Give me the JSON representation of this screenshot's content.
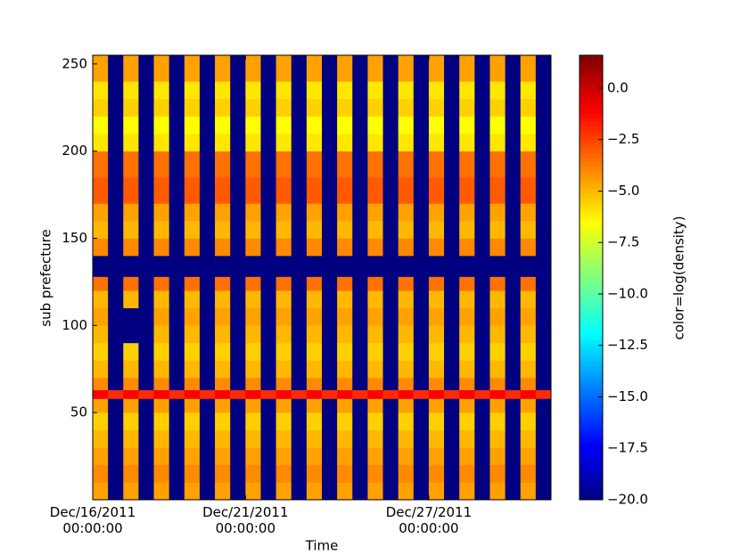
{
  "chart_data": {
    "type": "heatmap",
    "xlabel": "Time",
    "ylabel": "sub prefecture",
    "colorbar_label": "color=log(density)",
    "colormap": "jet",
    "xlim": [
      0,
      15
    ],
    "ylim": [
      0,
      255
    ],
    "clim": [
      -20,
      1.6
    ],
    "xticks": [
      {
        "value": 0,
        "label": "Dec/16/2011\n00:00:00"
      },
      {
        "value": 5,
        "label": "Dec/21/2011\n00:00:00"
      },
      {
        "value": 11,
        "label": "Dec/27/2011\n00:00:00"
      }
    ],
    "yticks": [
      50,
      100,
      150,
      200,
      250
    ],
    "cticks": [
      {
        "value": 0,
        "label": "0.0"
      },
      {
        "value": -2.5,
        "label": "−2.5"
      },
      {
        "value": -5,
        "label": "−5.0"
      },
      {
        "value": -7.5,
        "label": "−7.5"
      },
      {
        "value": -10,
        "label": "−10.0"
      },
      {
        "value": -12.5,
        "label": "−12.5"
      },
      {
        "value": -15,
        "label": "−15.0"
      },
      {
        "value": -17.5,
        "label": "−17.5"
      },
      {
        "value": -20,
        "label": "−20.0"
      }
    ],
    "x_bins": [
      0,
      0.5,
      1,
      1.5,
      2,
      2.5,
      3,
      3.5,
      4,
      4.5,
      5,
      5.5,
      6,
      6.5,
      7,
      7.5,
      8,
      8.5,
      9,
      9.5,
      10,
      10.5,
      11,
      11.5,
      12,
      12.5,
      13,
      13.5,
      14,
      14.5,
      15
    ],
    "y_bins": [
      0,
      10,
      20,
      30,
      40,
      50,
      58,
      63,
      70,
      80,
      90,
      100,
      110,
      120,
      128,
      140,
      150,
      160,
      170,
      185,
      200,
      210,
      220,
      230,
      240,
      255
    ],
    "values": [
      [
        -4.5,
        -20,
        -4.5,
        -20,
        -4.5,
        -20,
        -4.5,
        -20,
        -4.5,
        -20,
        -4.5,
        -20,
        -4.5,
        -20,
        -4.5,
        -20,
        -4.5,
        -20,
        -4.5,
        -20,
        -4.5,
        -20,
        -4.5,
        -20,
        -4.5,
        -20,
        -4.5,
        -20,
        -4.5,
        -20
      ],
      [
        -4,
        -20,
        -4,
        -20,
        -4,
        -20,
        -4,
        -20,
        -4,
        -20,
        -4,
        -20,
        -4,
        -20,
        -4,
        -20,
        -4,
        -20,
        -4,
        -20,
        -4,
        -20,
        -4,
        -20,
        -4,
        -20,
        -4,
        -20,
        -4,
        -20
      ],
      [
        -4.5,
        -20,
        -4.5,
        -20,
        -4.5,
        -20,
        -4.5,
        -20,
        -4.5,
        -20,
        -4.5,
        -20,
        -4.5,
        -20,
        -4.5,
        -20,
        -4.5,
        -20,
        -4.5,
        -20,
        -4.5,
        -20,
        -4.5,
        -20,
        -4.5,
        -20,
        -4.5,
        -20,
        -4.5,
        -20
      ],
      [
        -5,
        -20,
        -5,
        -20,
        -5,
        -20,
        -5,
        -20,
        -5,
        -20,
        -5,
        -20,
        -5,
        -20,
        -5,
        -20,
        -5,
        -20,
        -5,
        -20,
        -5,
        -20,
        -5,
        -20,
        -5,
        -20,
        -5,
        -20,
        -5,
        -20
      ],
      [
        -5.5,
        -20,
        -5.5,
        -20,
        -5.5,
        -20,
        -5.5,
        -20,
        -5.5,
        -20,
        -5.5,
        -20,
        -5.5,
        -20,
        -5.5,
        -20,
        -5.5,
        -20,
        -5.5,
        -20,
        -5.5,
        -20,
        -5.5,
        -20,
        -5.5,
        -20,
        -5.5,
        -20,
        -5.5,
        -20
      ],
      [
        -4.5,
        -20,
        -4.5,
        -20,
        -4.5,
        -20,
        -4.5,
        -20,
        -4.5,
        -20,
        -4.5,
        -20,
        -4.5,
        -20,
        -4.5,
        -20,
        -4.5,
        -20,
        -4.5,
        -20,
        -4.5,
        -20,
        -4.5,
        -20,
        -4.5,
        -20,
        -4.5,
        -20,
        -4.5,
        -20
      ],
      [
        -1,
        -2,
        -1,
        -2,
        -1,
        -2,
        -1,
        -2,
        -1,
        -2,
        -1,
        -2,
        -1,
        -2,
        -1,
        -2,
        -1,
        -2,
        -1,
        -2,
        -1,
        -2,
        -1,
        -2,
        -1,
        -2,
        -1,
        -2,
        -1,
        -2
      ],
      [
        -4,
        -20,
        -4,
        -20,
        -4,
        -20,
        -4,
        -20,
        -4,
        -20,
        -4,
        -20,
        -4,
        -20,
        -4,
        -20,
        -4,
        -20,
        -4,
        -20,
        -4,
        -20,
        -4,
        -20,
        -4,
        -20,
        -4,
        -20,
        -4,
        -20
      ],
      [
        -5,
        -20,
        -5,
        -20,
        -5,
        -20,
        -5,
        -20,
        -5,
        -20,
        -5,
        -20,
        -5,
        -20,
        -5,
        -20,
        -5,
        -20,
        -5,
        -20,
        -5,
        -20,
        -5,
        -20,
        -5,
        -20,
        -5,
        -20,
        -5,
        -20
      ],
      [
        -5.5,
        -20,
        -5.5,
        -20,
        -5.5,
        -20,
        -5.5,
        -20,
        -5.5,
        -20,
        -5.5,
        -20,
        -5.5,
        -20,
        -5.5,
        -20,
        -5.5,
        -20,
        -5.5,
        -20,
        -5.5,
        -20,
        -5.5,
        -20,
        -5.5,
        -20,
        -5.5,
        -20,
        -5.5,
        -20
      ],
      [
        -5,
        -20,
        -20,
        -20,
        -5,
        -20,
        -5,
        -20,
        -5,
        -20,
        -5,
        -20,
        -5,
        -20,
        -5,
        -20,
        -5,
        -20,
        -5,
        -20,
        -5,
        -20,
        -5,
        -20,
        -5,
        -20,
        -5,
        -20,
        -5,
        -20
      ],
      [
        -4.5,
        -20,
        -20,
        -20,
        -4.5,
        -20,
        -4.5,
        -20,
        -4.5,
        -20,
        -4.5,
        -20,
        -4.5,
        -20,
        -4.5,
        -20,
        -4.5,
        -20,
        -4.5,
        -20,
        -4.5,
        -20,
        -4.5,
        -20,
        -4.5,
        -20,
        -4.5,
        -20,
        -4.5,
        -20
      ],
      [
        -5,
        -20,
        -5,
        -20,
        -5,
        -20,
        -5,
        -20,
        -5,
        -20,
        -5,
        -20,
        -5,
        -20,
        -5,
        -20,
        -5,
        -20,
        -5,
        -20,
        -5,
        -20,
        -5,
        -20,
        -5,
        -20,
        -5,
        -20,
        -5,
        -20
      ],
      [
        -3.5,
        -20,
        -3.5,
        -20,
        -3.5,
        -20,
        -3.5,
        -20,
        -3.5,
        -20,
        -3.5,
        -20,
        -3.5,
        -20,
        -3.5,
        -20,
        -3.5,
        -20,
        -3.5,
        -20,
        -3.5,
        -20,
        -3.5,
        -20,
        -3.5,
        -20,
        -3.5,
        -20,
        -3.5,
        -20
      ],
      [
        -20,
        -20,
        -20,
        -20,
        -20,
        -20,
        -20,
        -20,
        -20,
        -20,
        -20,
        -20,
        -20,
        -20,
        -20,
        -20,
        -20,
        -20,
        -20,
        -20,
        -20,
        -20,
        -20,
        -20,
        -20,
        -20,
        -20,
        -20,
        -20,
        -20
      ],
      [
        -4,
        -20,
        -4,
        -20,
        -4,
        -20,
        -4,
        -20,
        -4,
        -20,
        -4,
        -20,
        -4,
        -20,
        -4,
        -20,
        -4,
        -20,
        -4,
        -20,
        -4,
        -20,
        -4,
        -20,
        -4,
        -20,
        -4,
        -20,
        -4,
        -20
      ],
      [
        -5,
        -20,
        -5,
        -20,
        -5,
        -20,
        -5,
        -20,
        -5,
        -20,
        -5,
        -20,
        -5,
        -20,
        -5,
        -20,
        -5,
        -20,
        -5,
        -20,
        -5,
        -20,
        -5,
        -20,
        -5,
        -20,
        -5,
        -20,
        -5,
        -20
      ],
      [
        -4.5,
        -20,
        -4.5,
        -20,
        -4.5,
        -20,
        -4.5,
        -20,
        -4.5,
        -20,
        -4.5,
        -20,
        -4.5,
        -20,
        -4.5,
        -20,
        -4.5,
        -20,
        -4.5,
        -20,
        -4.5,
        -20,
        -4.5,
        -20,
        -4.5,
        -20,
        -4.5,
        -20,
        -4.5,
        -20
      ],
      [
        -3,
        -20,
        -3,
        -20,
        -3,
        -20,
        -3,
        -20,
        -3,
        -20,
        -3,
        -20,
        -3,
        -20,
        -3,
        -20,
        -3,
        -20,
        -3,
        -20,
        -3,
        -20,
        -3,
        -20,
        -3,
        -20,
        -3,
        -20,
        -3,
        -20
      ],
      [
        -3.5,
        -20,
        -3.5,
        -20,
        -3.5,
        -20,
        -3.5,
        -20,
        -3.5,
        -20,
        -3.5,
        -20,
        -3.5,
        -20,
        -3.5,
        -20,
        -3.5,
        -20,
        -3.5,
        -20,
        -3.5,
        -20,
        -3.5,
        -20,
        -3.5,
        -20,
        -3.5,
        -20,
        -3.5,
        -20
      ],
      [
        -6,
        -20,
        -6,
        -20,
        -6,
        -20,
        -6,
        -20,
        -6,
        -20,
        -6,
        -20,
        -6,
        -20,
        -6,
        -20,
        -6,
        -20,
        -6,
        -20,
        -6,
        -20,
        -6,
        -20,
        -6,
        -20,
        -6,
        -20,
        -6,
        -20
      ],
      [
        -6.5,
        -20,
        -6.5,
        -20,
        -6.5,
        -20,
        -6.5,
        -20,
        -6.5,
        -20,
        -6.5,
        -20,
        -6.5,
        -20,
        -6.5,
        -20,
        -6.5,
        -20,
        -6.5,
        -20,
        -6.5,
        -20,
        -6.5,
        -20,
        -6.5,
        -20,
        -6.5,
        -20,
        -6.5,
        -20
      ],
      [
        -5.5,
        -20,
        -5.5,
        -20,
        -5.5,
        -20,
        -5.5,
        -20,
        -5.5,
        -20,
        -5.5,
        -20,
        -5.5,
        -20,
        -5.5,
        -20,
        -5.5,
        -20,
        -5.5,
        -20,
        -5.5,
        -20,
        -5.5,
        -20,
        -5.5,
        -20,
        -5.5,
        -20,
        -5.5,
        -20
      ],
      [
        -6,
        -20,
        -6,
        -20,
        -6,
        -20,
        -6,
        -20,
        -6,
        -20,
        -6,
        -20,
        -6,
        -20,
        -6,
        -20,
        -6,
        -20,
        -6,
        -20,
        -6,
        -20,
        -6,
        -20,
        -6,
        -20,
        -6,
        -20,
        -6,
        -20
      ],
      [
        -4.5,
        -20,
        -4.5,
        -20,
        -4.5,
        -20,
        -4.5,
        -20,
        -4.5,
        -20,
        -4.5,
        -20,
        -4.5,
        -20,
        -4.5,
        -20,
        -4.5,
        -20,
        -4.5,
        -20,
        -4.5,
        -20,
        -4.5,
        -20,
        -4.5,
        -20,
        -4.5,
        -20,
        -4.5,
        -20
      ]
    ]
  }
}
